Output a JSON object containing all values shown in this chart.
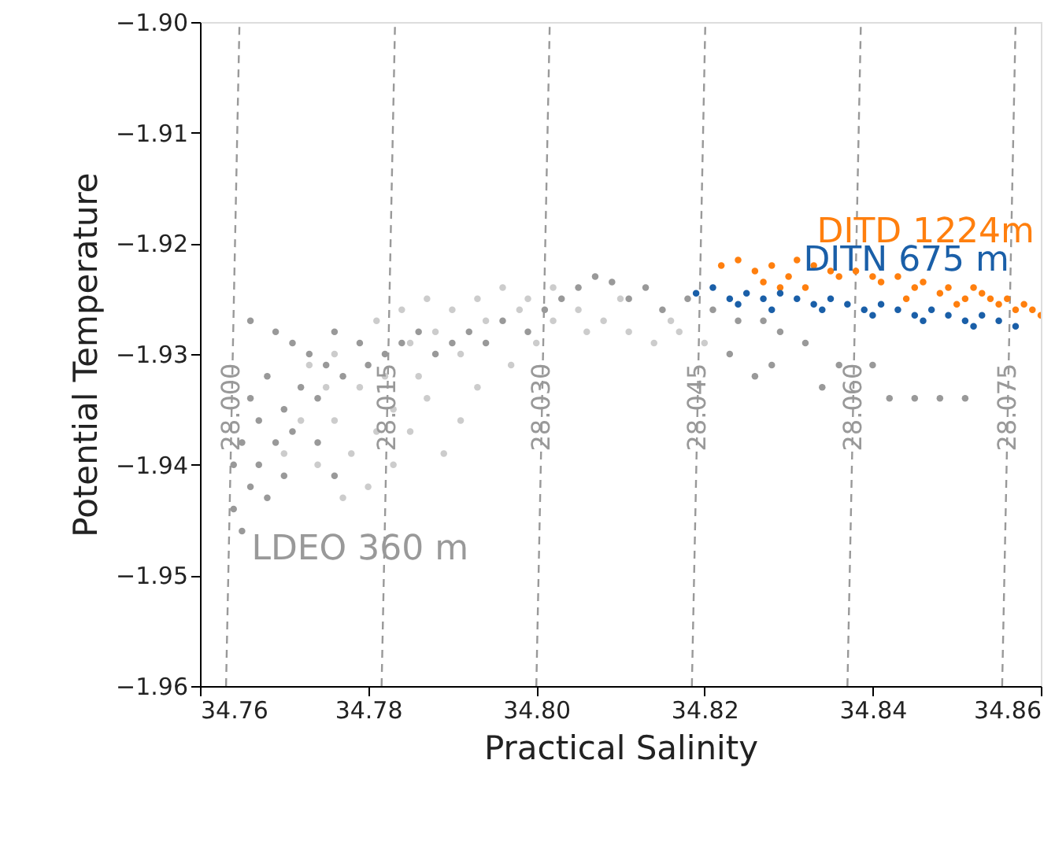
{
  "chart_data": {
    "type": "scatter",
    "xlabel": "Practical Salinity",
    "ylabel": "Potential Temperature",
    "xlim": [
      34.76,
      34.86
    ],
    "ylim": [
      -1.96,
      -1.9
    ],
    "xticks": [
      {
        "value": 34.76,
        "label": "34.76"
      },
      {
        "value": 34.78,
        "label": "34.78"
      },
      {
        "value": 34.8,
        "label": "34.80"
      },
      {
        "value": 34.82,
        "label": "34.82"
      },
      {
        "value": 34.84,
        "label": "34.84"
      },
      {
        "value": 34.86,
        "label": "34.86"
      }
    ],
    "yticks": [
      {
        "value": -1.96,
        "label": "−1.96"
      },
      {
        "value": -1.95,
        "label": "−1.95"
      },
      {
        "value": -1.94,
        "label": "−1.94"
      },
      {
        "value": -1.93,
        "label": "−1.93"
      },
      {
        "value": -1.92,
        "label": "−1.92"
      },
      {
        "value": -1.91,
        "label": "−1.91"
      },
      {
        "value": -1.9,
        "label": "−1.90"
      }
    ],
    "grid": false,
    "marker": "circle",
    "series": [
      {
        "type": "line",
        "marker": "none",
        "line_style": "dashed",
        "name": "28.000",
        "color": "#999999",
        "x": [
          34.7631,
          34.7647
        ],
        "values": [
          -1.96,
          -1.9
        ]
      },
      {
        "type": "line",
        "marker": "none",
        "line_style": "dashed",
        "name": "28.015",
        "color": "#999999",
        "x": [
          34.7816,
          34.7832
        ],
        "values": [
          -1.96,
          -1.9
        ]
      },
      {
        "type": "line",
        "marker": "none",
        "line_style": "dashed",
        "name": "28.030",
        "color": "#999999",
        "x": [
          34.8,
          34.8016
        ],
        "values": [
          -1.96,
          -1.9
        ]
      },
      {
        "type": "line",
        "marker": "none",
        "line_style": "dashed",
        "name": "28.045",
        "color": "#999999",
        "x": [
          34.8185,
          34.8201
        ],
        "values": [
          -1.96,
          -1.9
        ]
      },
      {
        "type": "line",
        "marker": "none",
        "line_style": "dashed",
        "name": "28.060",
        "color": "#999999",
        "x": [
          34.837,
          34.8386
        ],
        "values": [
          -1.96,
          -1.9
        ]
      },
      {
        "type": "line",
        "marker": "none",
        "line_style": "dashed",
        "name": "28.075",
        "color": "#999999",
        "x": [
          34.8554,
          34.857
        ],
        "values": [
          -1.96,
          -1.9
        ]
      },
      {
        "color": "#cccccc",
        "x": [
          34.772,
          34.774,
          34.776,
          34.778,
          34.78,
          34.781,
          34.783,
          34.785,
          34.787,
          34.789,
          34.791,
          34.779,
          34.782,
          34.786,
          34.773,
          34.776,
          34.781,
          34.784,
          34.787,
          34.79,
          34.793,
          34.796,
          34.799,
          34.802,
          34.805,
          34.808,
          34.811,
          34.814,
          34.817,
          34.82,
          34.791,
          34.794,
          34.798,
          34.802,
          34.806,
          34.788,
          34.785,
          34.775,
          34.77,
          34.777,
          34.783,
          34.793,
          34.797,
          34.8,
          34.81,
          34.816
        ],
        "values": [
          -1.936,
          -1.94,
          -1.936,
          -1.939,
          -1.942,
          -1.937,
          -1.935,
          -1.937,
          -1.934,
          -1.939,
          -1.936,
          -1.933,
          -1.932,
          -1.932,
          -1.931,
          -1.93,
          -1.927,
          -1.926,
          -1.925,
          -1.926,
          -1.925,
          -1.924,
          -1.925,
          -1.924,
          -1.926,
          -1.927,
          -1.928,
          -1.929,
          -1.928,
          -1.929,
          -1.93,
          -1.927,
          -1.926,
          -1.927,
          -1.928,
          -1.928,
          -1.929,
          -1.933,
          -1.939,
          -1.943,
          -1.94,
          -1.933,
          -1.931,
          -1.929,
          -1.925,
          -1.927
        ]
      },
      {
        "name": "LDEO 360 m",
        "color": "#999999",
        "x": [
          34.764,
          34.765,
          34.766,
          34.764,
          34.765,
          34.767,
          34.768,
          34.767,
          34.769,
          34.77,
          34.766,
          34.768,
          34.77,
          34.771,
          34.772,
          34.773,
          34.771,
          34.774,
          34.775,
          34.776,
          34.777,
          34.779,
          34.78,
          34.782,
          34.784,
          34.786,
          34.788,
          34.79,
          34.792,
          34.794,
          34.796,
          34.799,
          34.801,
          34.803,
          34.805,
          34.807,
          34.809,
          34.811,
          34.813,
          34.815,
          34.818,
          34.821,
          34.824,
          34.827,
          34.829,
          34.832,
          34.828,
          34.836,
          34.84,
          34.834,
          34.845,
          34.842,
          34.848,
          34.851,
          34.823,
          34.826,
          34.766,
          34.769,
          34.776,
          34.774
        ],
        "values": [
          -1.944,
          -1.946,
          -1.942,
          -1.94,
          -1.938,
          -1.94,
          -1.943,
          -1.936,
          -1.938,
          -1.941,
          -1.934,
          -1.932,
          -1.935,
          -1.937,
          -1.933,
          -1.93,
          -1.929,
          -1.934,
          -1.931,
          -1.928,
          -1.932,
          -1.929,
          -1.931,
          -1.93,
          -1.929,
          -1.928,
          -1.93,
          -1.929,
          -1.928,
          -1.929,
          -1.927,
          -1.928,
          -1.926,
          -1.925,
          -1.924,
          -1.923,
          -1.9235,
          -1.925,
          -1.924,
          -1.926,
          -1.925,
          -1.926,
          -1.927,
          -1.927,
          -1.928,
          -1.929,
          -1.931,
          -1.931,
          -1.931,
          -1.933,
          -1.934,
          -1.934,
          -1.934,
          -1.934,
          -1.93,
          -1.932,
          -1.927,
          -1.928,
          -1.941,
          -1.938
        ]
      },
      {
        "name": "DITD 1224m",
        "color": "#ff7f0e",
        "x": [
          34.822,
          34.824,
          34.826,
          34.828,
          34.83,
          34.831,
          34.833,
          34.835,
          34.836,
          34.838,
          34.84,
          34.841,
          34.843,
          34.845,
          34.846,
          34.848,
          34.849,
          34.851,
          34.852,
          34.853,
          34.854,
          34.855,
          34.856,
          34.857,
          34.858,
          34.859,
          34.86,
          34.827,
          34.829,
          34.832,
          34.844,
          34.85
        ],
        "values": [
          -1.922,
          -1.9215,
          -1.9225,
          -1.922,
          -1.923,
          -1.9215,
          -1.922,
          -1.9225,
          -1.923,
          -1.9225,
          -1.923,
          -1.9235,
          -1.923,
          -1.924,
          -1.9235,
          -1.9245,
          -1.924,
          -1.925,
          -1.924,
          -1.9245,
          -1.925,
          -1.9255,
          -1.925,
          -1.926,
          -1.9255,
          -1.926,
          -1.9265,
          -1.9235,
          -1.924,
          -1.924,
          -1.925,
          -1.9255
        ]
      },
      {
        "name": "DITN 675 m",
        "color": "#1a5fa8",
        "x": [
          34.819,
          34.821,
          34.823,
          34.825,
          34.827,
          34.829,
          34.831,
          34.833,
          34.835,
          34.837,
          34.839,
          34.841,
          34.843,
          34.845,
          34.847,
          34.849,
          34.851,
          34.853,
          34.855,
          34.857,
          34.824,
          34.828,
          34.834,
          34.84,
          34.846,
          34.852
        ],
        "values": [
          -1.9245,
          -1.924,
          -1.925,
          -1.9245,
          -1.925,
          -1.9245,
          -1.925,
          -1.9255,
          -1.925,
          -1.9255,
          -1.926,
          -1.9255,
          -1.926,
          -1.9265,
          -1.926,
          -1.9265,
          -1.927,
          -1.9265,
          -1.927,
          -1.9275,
          -1.9255,
          -1.926,
          -1.926,
          -1.9265,
          -1.927,
          -1.9275
        ]
      }
    ]
  }
}
